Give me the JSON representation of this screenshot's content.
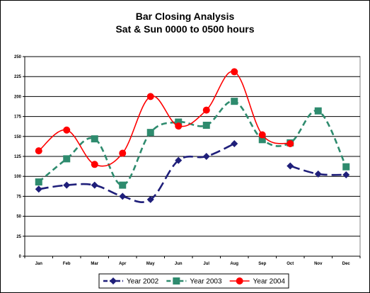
{
  "chart_data": {
    "type": "line",
    "title": "Bar Closing Analysis",
    "subtitle": "Sat & Sun 0000 to 0500 hours",
    "categories": [
      "Jan",
      "Feb",
      "Mar",
      "Apr",
      "May",
      "Jun",
      "Jul",
      "Aug",
      "Sep",
      "Oct",
      "Nov",
      "Dec"
    ],
    "yticks": [
      "0",
      "25",
      "50",
      "75",
      "100",
      "125",
      "150",
      "175",
      "200",
      "225",
      "250"
    ],
    "ylim": [
      0,
      250
    ],
    "grid": true,
    "legend_position": "bottom",
    "series": [
      {
        "name": "Year 2002",
        "color": "#1f1f7a",
        "marker": "diamond",
        "dash": "long-dash",
        "values": [
          84,
          89,
          89,
          75,
          71,
          120,
          125,
          141,
          null,
          113,
          103,
          102
        ]
      },
      {
        "name": "Year 2003",
        "color": "#2e8b6e",
        "marker": "square",
        "dash": "dash",
        "values": [
          93,
          122,
          147,
          89,
          155,
          168,
          164,
          194,
          146,
          142,
          182,
          112
        ]
      },
      {
        "name": "Year 2004",
        "color": "#ff0000",
        "marker": "circle",
        "dash": "solid",
        "values": [
          132,
          158,
          115,
          129,
          200,
          163,
          183,
          231,
          152,
          141,
          null,
          null
        ]
      }
    ]
  }
}
